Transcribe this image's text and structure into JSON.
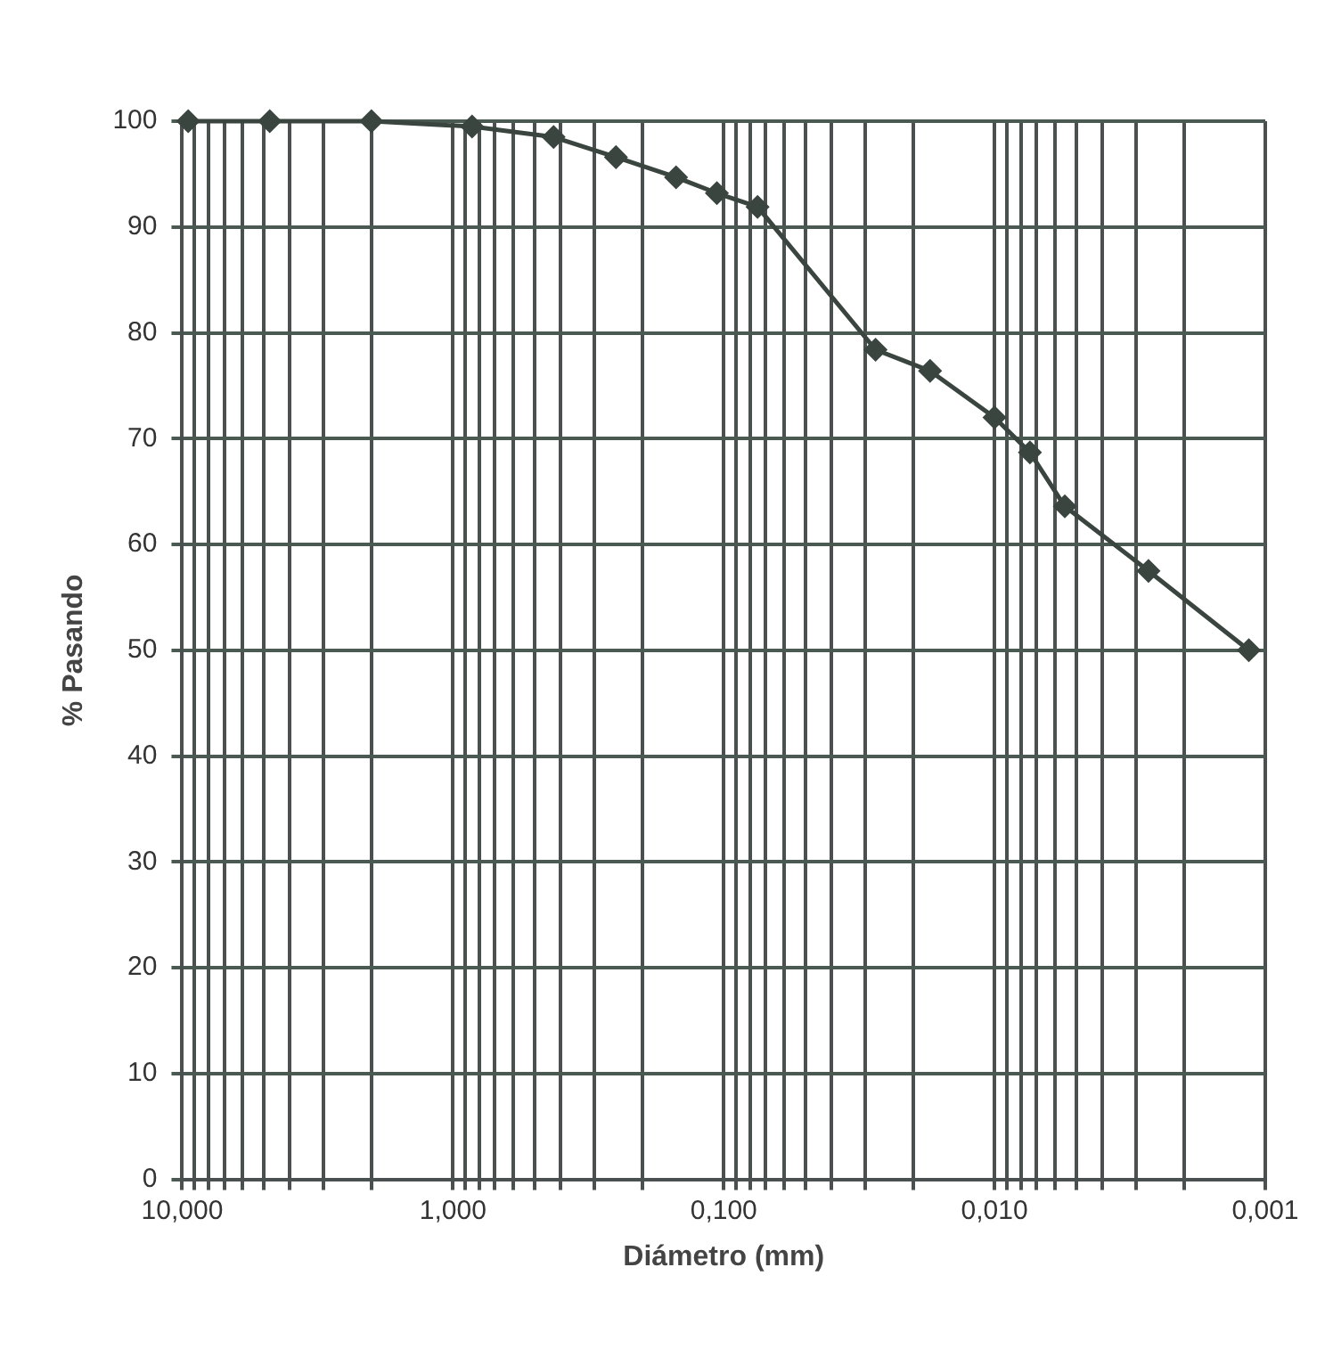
{
  "chart_data": {
    "type": "line",
    "xlabel": "Diámetro (mm)",
    "ylabel": "% Pasando",
    "x": [
      9.5,
      4.75,
      2.0,
      0.85,
      0.425,
      0.25,
      0.15,
      0.106,
      0.075,
      0.0275,
      0.0173,
      0.01,
      0.0074,
      0.0055,
      0.0027,
      0.00115
    ],
    "series": [
      {
        "color": "#3b4540",
        "values": [
          100,
          100,
          100,
          99.5,
          98.5,
          96.6,
          94.7,
          93.2,
          91.9,
          78.4,
          76.4,
          72.0,
          68.7,
          63.6,
          57.5,
          50.0
        ]
      }
    ],
    "log": "x",
    "xlim": [
      10,
      0.001
    ],
    "xticks": [
      {
        "value": 10,
        "label": "10,000"
      },
      {
        "value": 9,
        "label": null
      },
      {
        "value": 8,
        "label": null
      },
      {
        "value": 7,
        "label": null
      },
      {
        "value": 6,
        "label": null
      },
      {
        "value": 5,
        "label": null
      },
      {
        "value": 4,
        "label": null
      },
      {
        "value": 3,
        "label": null
      },
      {
        "value": 2,
        "label": null
      },
      {
        "value": 1,
        "label": "1,000"
      },
      {
        "value": 0.9,
        "label": null
      },
      {
        "value": 0.8,
        "label": null
      },
      {
        "value": 0.7,
        "label": null
      },
      {
        "value": 0.6,
        "label": null
      },
      {
        "value": 0.5,
        "label": null
      },
      {
        "value": 0.4,
        "label": null
      },
      {
        "value": 0.3,
        "label": null
      },
      {
        "value": 0.2,
        "label": null
      },
      {
        "value": 0.1,
        "label": "0,100"
      },
      {
        "value": 0.09,
        "label": null
      },
      {
        "value": 0.08,
        "label": null
      },
      {
        "value": 0.07,
        "label": null
      },
      {
        "value": 0.06,
        "label": null
      },
      {
        "value": 0.05,
        "label": null
      },
      {
        "value": 0.04,
        "label": null
      },
      {
        "value": 0.03,
        "label": null
      },
      {
        "value": 0.02,
        "label": null
      },
      {
        "value": 0.01,
        "label": "0,010"
      },
      {
        "value": 0.009,
        "label": null
      },
      {
        "value": 0.008,
        "label": null
      },
      {
        "value": 0.007,
        "label": null
      },
      {
        "value": 0.006,
        "label": null
      },
      {
        "value": 0.005,
        "label": null
      },
      {
        "value": 0.004,
        "label": null
      },
      {
        "value": 0.003,
        "label": null
      },
      {
        "value": 0.002,
        "label": null
      },
      {
        "value": 0.001,
        "label": "0,001"
      }
    ],
    "ylim": [
      0,
      100
    ],
    "yticks": [
      0,
      10,
      20,
      30,
      40,
      50,
      60,
      70,
      80,
      90,
      100
    ],
    "grid": true,
    "legend": false,
    "marker": "diamond",
    "line_style": "solid"
  }
}
